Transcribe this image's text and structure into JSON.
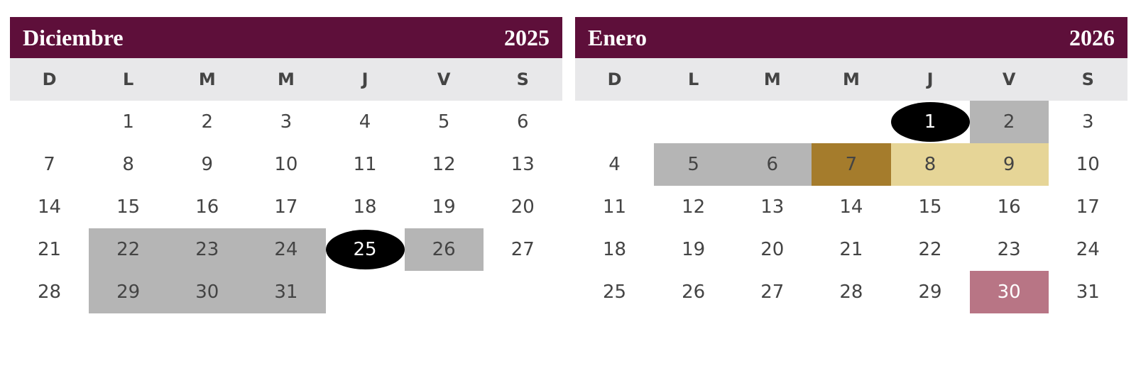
{
  "months": [
    {
      "title": "Diciembre",
      "year": "2025",
      "weekdays": [
        "D",
        "L",
        "M",
        "M",
        "J",
        "V",
        "S"
      ],
      "weeks": [
        [
          null,
          1,
          2,
          3,
          4,
          5,
          6
        ],
        [
          7,
          8,
          9,
          10,
          11,
          12,
          13
        ],
        [
          14,
          15,
          16,
          17,
          18,
          19,
          20
        ],
        [
          21,
          {
            "day": 22,
            "fill": "#b5b5b5"
          },
          {
            "day": 23,
            "fill": "#b5b5b5"
          },
          {
            "day": 24,
            "fill": "#b5b5b5"
          },
          {
            "day": 25,
            "circle": "#000000",
            "text_color": "#ffffff"
          },
          {
            "day": 26,
            "fill": "#b5b5b5"
          },
          27
        ],
        [
          28,
          {
            "day": 29,
            "fill": "#b5b5b5"
          },
          {
            "day": 30,
            "fill": "#b5b5b5"
          },
          {
            "day": 31,
            "fill": "#b5b5b5"
          },
          null,
          null,
          null
        ]
      ]
    },
    {
      "title": "Enero",
      "year": "2026",
      "weekdays": [
        "D",
        "L",
        "M",
        "M",
        "J",
        "V",
        "S"
      ],
      "weeks": [
        [
          null,
          null,
          null,
          null,
          {
            "day": 1,
            "circle": "#000000",
            "text_color": "#ffffff"
          },
          {
            "day": 2,
            "fill": "#b5b5b5"
          },
          3
        ],
        [
          4,
          {
            "day": 5,
            "fill": "#b5b5b5"
          },
          {
            "day": 6,
            "fill": "#b5b5b5"
          },
          {
            "day": 7,
            "fill": "#a57c2c"
          },
          {
            "day": 8,
            "fill": "#e6d597"
          },
          {
            "day": 9,
            "fill": "#e6d597"
          },
          10
        ],
        [
          11,
          12,
          13,
          14,
          15,
          16,
          17
        ],
        [
          18,
          19,
          20,
          21,
          22,
          23,
          24
        ],
        [
          25,
          26,
          27,
          28,
          29,
          {
            "day": 30,
            "fill": "#b87585",
            "text_color": "#ffffff"
          },
          31
        ]
      ]
    }
  ]
}
